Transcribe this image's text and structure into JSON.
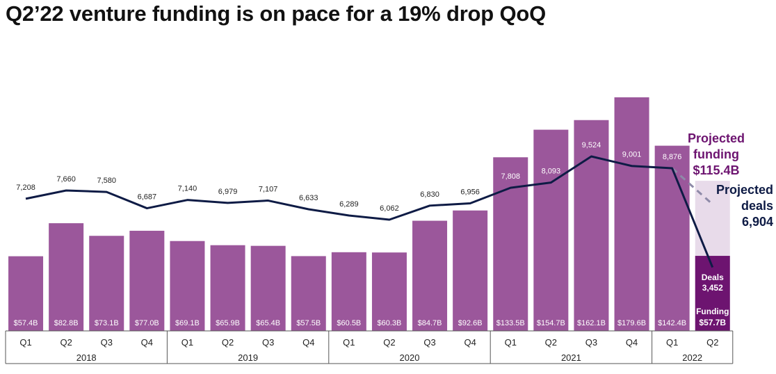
{
  "title": "Q2’22 venture funding is on pace for a 19% drop QoQ",
  "chart_data": {
    "type": "bar",
    "years": [
      "2018",
      "2019",
      "2020",
      "2021",
      "2022"
    ],
    "quarters": [
      "Q1",
      "Q2",
      "Q3",
      "Q4",
      "Q1",
      "Q2",
      "Q3",
      "Q4",
      "Q1",
      "Q2",
      "Q3",
      "Q4",
      "Q1",
      "Q2",
      "Q3",
      "Q4",
      "Q1",
      "Q2"
    ],
    "series": [
      {
        "name": "Funding",
        "type": "bar",
        "values": [
          57.4,
          82.8,
          73.1,
          77.0,
          69.1,
          65.9,
          65.4,
          57.5,
          60.5,
          60.3,
          84.7,
          92.6,
          133.5,
          154.7,
          162.1,
          179.6,
          142.4,
          57.7
        ],
        "labels": [
          "$57.4B",
          "$82.8B",
          "$73.1B",
          "$77.0B",
          "$69.1B",
          "$65.9B",
          "$65.4B",
          "$57.5B",
          "$60.5B",
          "$60.3B",
          "$84.7B",
          "$92.6B",
          "$133.5B",
          "$154.7B",
          "$162.1B",
          "$179.6B",
          "$142.4B",
          "$57.7B"
        ]
      },
      {
        "name": "Deals",
        "type": "line",
        "values": [
          7208,
          7660,
          7580,
          6687,
          7140,
          6979,
          7107,
          6633,
          6289,
          6062,
          6830,
          6956,
          7808,
          8093,
          9524,
          9001,
          8876,
          3452
        ],
        "labels": [
          "7,208",
          "7,660",
          "7,580",
          "6,687",
          "7,140",
          "6,979",
          "7,107",
          "6,633",
          "6,289",
          "6,062",
          "6,830",
          "6,956",
          "7,808",
          "8,093",
          "9,524",
          "9,001",
          "8,876",
          "3,452"
        ]
      }
    ],
    "projection": {
      "funding_value": 115.4,
      "funding_label": "Projected funding $115.4B",
      "funding_line1": "Projected",
      "funding_line2": "funding",
      "funding_line3": "$115.4B",
      "deals_value": 6904,
      "deals_line1": "Projected",
      "deals_line2": "deals",
      "deals_line3": "6,904"
    },
    "last_bar_labels": {
      "deals_word": "Deals",
      "deals_value": "3,452",
      "funding_word": "Funding",
      "funding_value": "$57.7B"
    },
    "colors": {
      "bar": "#9b579b",
      "current_bar": "#6d1470",
      "projected_bar": "#e8dbea",
      "line": "#0e1b45",
      "projected_line": "#8e8aa8",
      "projected_text": "#6d1470"
    },
    "grid": false,
    "legend": "none"
  }
}
